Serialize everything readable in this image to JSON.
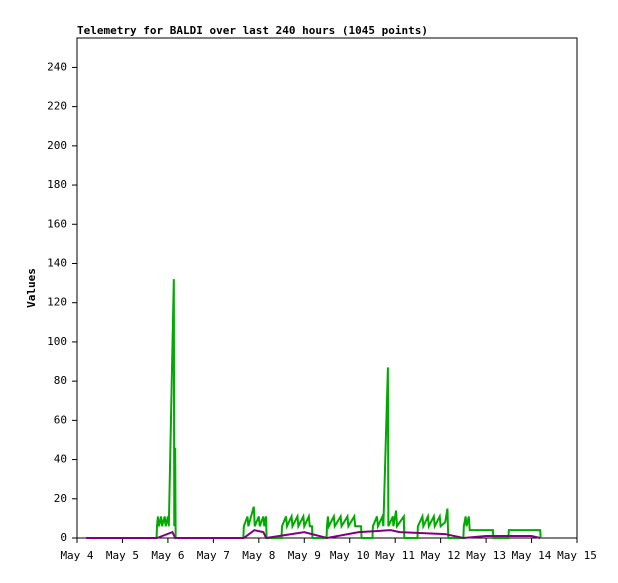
{
  "chart_data": {
    "type": "line",
    "title": "Telemetry for BALDI over last 240 hours (1045 points)",
    "y_label": "Values",
    "xlim": [
      4,
      15
    ],
    "xticks": [
      {
        "value": 4,
        "label": "May 4"
      },
      {
        "value": 5,
        "label": "May 5"
      },
      {
        "value": 6,
        "label": "May 6"
      },
      {
        "value": 7,
        "label": "May 7"
      },
      {
        "value": 8,
        "label": "May 8"
      },
      {
        "value": 9,
        "label": "May 9"
      },
      {
        "value": 10,
        "label": "May 10"
      },
      {
        "value": 11,
        "label": "May 11"
      },
      {
        "value": 12,
        "label": "May 12"
      },
      {
        "value": 13,
        "label": "May 13"
      },
      {
        "value": 14,
        "label": "May 14"
      },
      {
        "value": 15,
        "label": "May 15"
      }
    ],
    "ylim": [
      0,
      255
    ],
    "yticks": [
      0,
      20,
      40,
      60,
      80,
      100,
      120,
      140,
      160,
      180,
      200,
      220,
      240
    ],
    "series": [
      {
        "color": "#00aa00",
        "x": [
          4.2,
          5.7,
          5.75,
          5.76,
          5.78,
          5.8,
          5.85,
          5.87,
          5.93,
          5.95,
          6.0,
          6.02,
          6.13,
          6.14,
          6.16,
          6.17,
          7.66,
          7.67,
          7.75,
          7.77,
          7.89,
          7.91,
          8.0,
          8.02,
          8.1,
          8.12,
          8.16,
          8.17,
          8.5,
          8.51,
          8.6,
          8.62,
          8.72,
          8.74,
          8.85,
          8.87,
          8.98,
          9.0,
          9.1,
          9.12,
          9.17,
          9.18,
          9.49,
          9.5,
          9.52,
          9.54,
          9.65,
          9.67,
          9.8,
          9.82,
          9.95,
          9.97,
          10.1,
          10.12,
          10.25,
          10.26,
          10.5,
          10.51,
          10.6,
          10.62,
          10.72,
          10.74,
          10.84,
          10.85,
          10.95,
          10.96,
          11.02,
          11.04,
          11.19,
          11.2,
          11.49,
          11.5,
          11.6,
          11.62,
          11.72,
          11.74,
          11.85,
          11.87,
          11.98,
          12.0,
          12.1,
          12.15,
          12.16,
          12.17,
          12.5,
          12.51,
          12.55,
          12.57,
          12.62,
          12.64,
          13.15,
          13.16,
          13.49,
          13.5,
          14.19,
          14.2
        ],
        "values": [
          0,
          0,
          0,
          6,
          11,
          6,
          11,
          6,
          11,
          6,
          11,
          6,
          132,
          6,
          46,
          0,
          0,
          6,
          11,
          6,
          16,
          6,
          11,
          6,
          11,
          6,
          11,
          0,
          0,
          6,
          11,
          6,
          11,
          6,
          11,
          6,
          11,
          6,
          11,
          6,
          6,
          0,
          0,
          6,
          11,
          6,
          11,
          6,
          11,
          6,
          11,
          6,
          11,
          6,
          6,
          0,
          0,
          6,
          11,
          6,
          11,
          6,
          87,
          6,
          11,
          6,
          14,
          6,
          11,
          0,
          0,
          6,
          11,
          6,
          11,
          6,
          11,
          6,
          11,
          6,
          8,
          15,
          6,
          0,
          0,
          6,
          11,
          6,
          11,
          4,
          4,
          0,
          0,
          4,
          4,
          0
        ]
      },
      {
        "color": "#800080",
        "x": [
          4.2,
          5.76,
          6.1,
          6.16,
          7.67,
          7.9,
          8.1,
          8.16,
          9.0,
          9.5,
          10.2,
          10.9,
          11.1,
          12.1,
          12.5,
          13.0,
          14.0,
          14.19
        ],
        "values": [
          0,
          0,
          3,
          0,
          0,
          4,
          3,
          0,
          3,
          0,
          3,
          4,
          3,
          2,
          0,
          1,
          1,
          0
        ]
      }
    ]
  }
}
